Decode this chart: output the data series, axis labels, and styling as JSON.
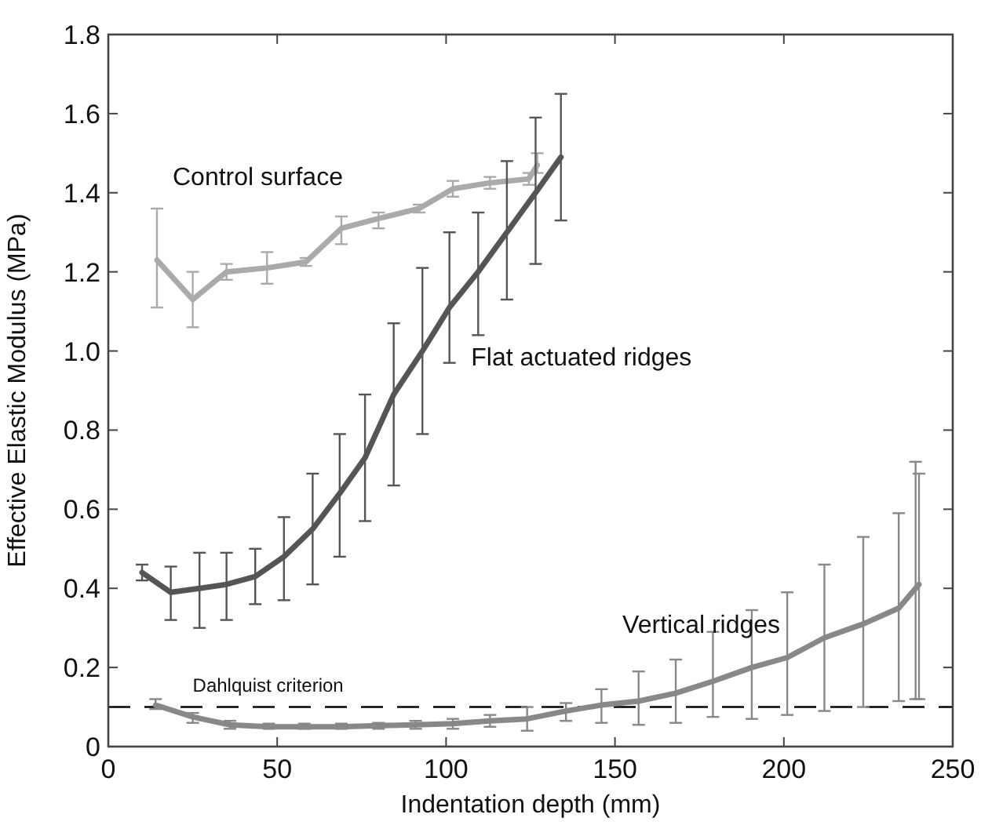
{
  "chart_data": {
    "type": "line",
    "xlabel": "Indentation depth (mm)",
    "ylabel": "Effective Elastic Modulus (MPa)",
    "xlim": [
      0,
      250
    ],
    "ylim": [
      0,
      1.8
    ],
    "xticks": [
      0,
      50,
      100,
      150,
      200,
      250
    ],
    "yticks": [
      0,
      0.2,
      0.4,
      0.6,
      0.8,
      {
        "value": 1,
        "label": "1.0"
      },
      1.2,
      1.4,
      1.6,
      1.8
    ],
    "grid": false,
    "marker": "none",
    "line_style": "solid",
    "ref_lines": [
      {
        "axis": "y",
        "value": 0.1,
        "label": "Dahlquist criterion",
        "line_style": "dashed",
        "color": "#000000"
      }
    ],
    "series": [
      {
        "name": "Control surface",
        "color": "#aaaaaa",
        "x": [
          14.4,
          25,
          35,
          47,
          58.5,
          69,
          80,
          92,
          102,
          113,
          124.5,
          127
        ],
        "values": [
          1.23,
          1.13,
          1.2,
          1.21,
          1.225,
          1.31,
          1.335,
          1.36,
          1.41,
          1.425,
          1.435,
          1.47
        ],
        "errors": [
          [
            1.11,
            1.36
          ],
          [
            1.06,
            1.2
          ],
          [
            1.18,
            1.22
          ],
          [
            1.17,
            1.25
          ],
          [
            1.215,
            1.235
          ],
          [
            1.27,
            1.34
          ],
          [
            1.31,
            1.35
          ],
          [
            1.35,
            1.37
          ],
          [
            1.39,
            1.43
          ],
          [
            1.41,
            1.44
          ],
          [
            1.42,
            1.45
          ],
          [
            1.45,
            1.5
          ]
        ]
      },
      {
        "name": "Flat actuated ridges",
        "color": "#555555",
        "x": [
          10,
          18.5,
          27,
          35,
          43.5,
          52,
          60.5,
          68.5,
          76,
          84.5,
          93,
          101,
          109.5,
          118,
          126.5,
          134
        ],
        "values": [
          0.44,
          0.39,
          0.4,
          0.41,
          0.43,
          0.48,
          0.55,
          0.64,
          0.73,
          0.89,
          1.0,
          1.11,
          1.2,
          1.3,
          1.4,
          1.49
        ],
        "errors": [
          [
            0.42,
            0.46
          ],
          [
            0.32,
            0.455
          ],
          [
            0.3,
            0.49
          ],
          [
            0.32,
            0.49
          ],
          [
            0.36,
            0.5
          ],
          [
            0.37,
            0.58
          ],
          [
            0.41,
            0.69
          ],
          [
            0.48,
            0.79
          ],
          [
            0.57,
            0.89
          ],
          [
            0.66,
            1.07
          ],
          [
            0.79,
            1.21
          ],
          [
            0.97,
            1.3
          ],
          [
            1.04,
            1.35
          ],
          [
            1.13,
            1.48
          ],
          [
            1.22,
            1.59
          ],
          [
            1.33,
            1.65
          ]
        ]
      },
      {
        "name": "Vertical ridges",
        "color": "#888888",
        "x": [
          14,
          25,
          36,
          47.5,
          58,
          69,
          80,
          91,
          102,
          113,
          124,
          135.5,
          146,
          157,
          168,
          179,
          190.5,
          201,
          212,
          223.5,
          234,
          239,
          240
        ],
        "values": [
          0.105,
          0.075,
          0.055,
          0.05,
          0.05,
          0.05,
          0.053,
          0.055,
          0.058,
          0.065,
          0.07,
          0.09,
          0.105,
          0.115,
          0.135,
          0.165,
          0.2,
          0.225,
          0.275,
          0.31,
          0.35,
          0.4,
          0.41
        ],
        "errors": [
          [
            0.095,
            0.12
          ],
          [
            0.06,
            0.085
          ],
          [
            0.045,
            0.065
          ],
          [
            0.045,
            0.058
          ],
          [
            0.045,
            0.058
          ],
          [
            0.045,
            0.058
          ],
          [
            0.045,
            0.06
          ],
          [
            0.045,
            0.065
          ],
          [
            0.045,
            0.07
          ],
          [
            0.05,
            0.08
          ],
          [
            0.04,
            0.1
          ],
          [
            0.065,
            0.11
          ],
          [
            0.06,
            0.145
          ],
          [
            0.055,
            0.19
          ],
          [
            0.06,
            0.22
          ],
          [
            0.075,
            0.29
          ],
          [
            0.07,
            0.345
          ],
          [
            0.08,
            0.39
          ],
          [
            0.09,
            0.46
          ],
          [
            0.1,
            0.53
          ],
          [
            0.115,
            0.59
          ],
          [
            0.12,
            0.72
          ],
          [
            0.12,
            0.69
          ]
        ]
      }
    ]
  }
}
